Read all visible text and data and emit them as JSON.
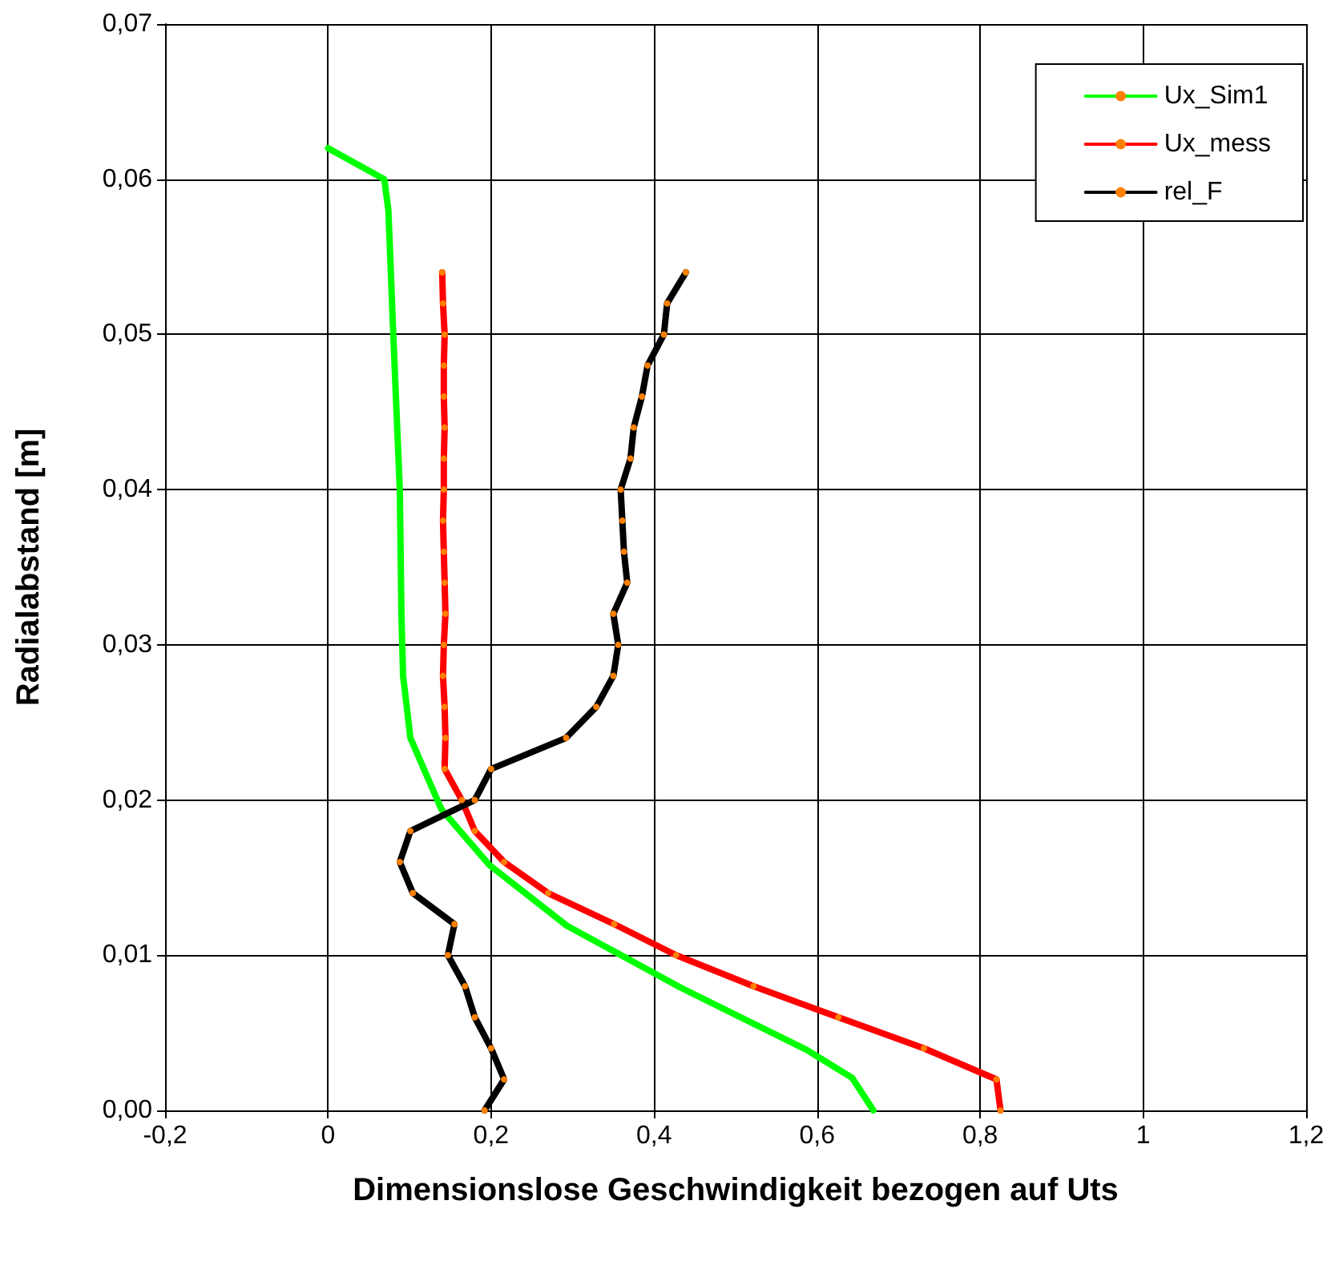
{
  "chart_data": {
    "type": "line",
    "xlabel": "Dimensionslose Geschwindigkeit bezogen auf Uts",
    "ylabel": "Radialabstand [m]",
    "xlim": [
      -0.2,
      1.2
    ],
    "xticks": [
      {
        "value": -0.2,
        "label": "-0,2"
      },
      0,
      {
        "value": 0.2,
        "label": "0,2"
      },
      {
        "value": 0.4,
        "label": "0,4"
      },
      {
        "value": 0.6,
        "label": "0,6"
      },
      {
        "value": 0.8,
        "label": "0,8"
      },
      1,
      {
        "value": 1.2,
        "label": "1,2"
      }
    ],
    "ylim": [
      0,
      0.07
    ],
    "yticks": [
      {
        "value": 0,
        "label": "0,00"
      },
      {
        "value": 0.01,
        "label": "0,01"
      },
      {
        "value": 0.02,
        "label": "0,02"
      },
      {
        "value": 0.03,
        "label": "0,03"
      },
      {
        "value": 0.04,
        "label": "0,04"
      },
      {
        "value": 0.05,
        "label": "0,05"
      },
      {
        "value": 0.06,
        "label": "0,06"
      },
      {
        "value": 0.07,
        "label": "0,07"
      }
    ],
    "grid": true,
    "legend": "top right",
    "line_style": "solid",
    "series": [
      {
        "name": "Ux_Sim1",
        "color": "#00ff00",
        "marker": "none",
        "x": [
          0,
          0.069,
          0.074,
          0.08,
          0.088,
          0.09,
          0.092,
          0.101,
          0.139,
          0.198,
          0.293,
          0.433,
          0.587,
          0.643,
          0.669
        ],
        "values": [
          0.062,
          0.06,
          0.058,
          0.05,
          0.04,
          0.032,
          0.028,
          0.024,
          0.0194,
          0.0158,
          0.0119,
          0.0079,
          0.0039,
          0.0021,
          0
        ]
      },
      {
        "name": "Ux_mess",
        "color": "#ff0000",
        "marker": "circle",
        "x": [
          0.825,
          0.82,
          0.731,
          0.626,
          0.522,
          0.427,
          0.351,
          0.27,
          0.216,
          0.18,
          0.164,
          0.143,
          0.144,
          0.143,
          0.141,
          0.142,
          0.144,
          0.143,
          0.142,
          0.141,
          0.142,
          0.142,
          0.143,
          0.142,
          0.142,
          0.143,
          0.141,
          0.14
        ],
        "values": [
          0,
          0.002,
          0.004,
          0.006,
          0.008,
          0.01,
          0.012,
          0.014,
          0.016,
          0.018,
          0.02,
          0.022,
          0.024,
          0.026,
          0.028,
          0.03,
          0.032,
          0.034,
          0.036,
          0.038,
          0.04,
          0.042,
          0.044,
          0.046,
          0.048,
          0.05,
          0.052,
          0.054
        ]
      },
      {
        "name": "rel_F",
        "color": "#000000",
        "marker": "circle",
        "x": [
          0.192,
          0.216,
          0.2,
          0.18,
          0.168,
          0.147,
          0.155,
          0.104,
          0.088,
          0.101,
          0.18,
          0.2,
          0.292,
          0.329,
          0.35,
          0.356,
          0.35,
          0.367,
          0.363,
          0.361,
          0.359,
          0.371,
          0.375,
          0.385,
          0.392,
          0.412,
          0.416,
          0.439
        ],
        "values": [
          0,
          0.002,
          0.004,
          0.006,
          0.008,
          0.01,
          0.012,
          0.014,
          0.016,
          0.018,
          0.02,
          0.022,
          0.024,
          0.026,
          0.028,
          0.03,
          0.032,
          0.034,
          0.036,
          0.038,
          0.04,
          0.042,
          0.044,
          0.046,
          0.048,
          0.05,
          0.052,
          0.054
        ]
      }
    ]
  }
}
